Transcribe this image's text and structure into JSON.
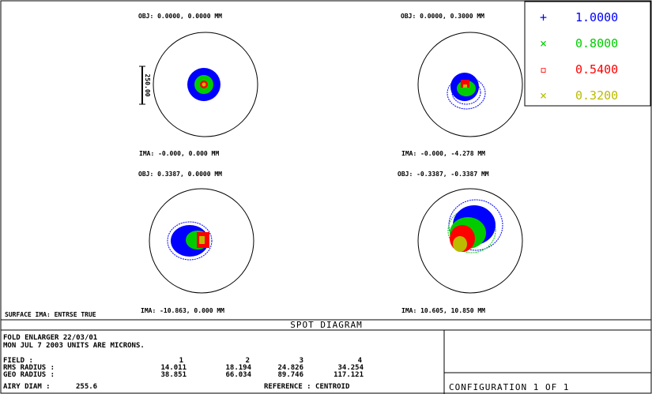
{
  "title": "SPOT DIAGRAM",
  "legend": [
    {
      "marker": "+",
      "value": "1.0000",
      "color": "#0000ff"
    },
    {
      "marker": "×",
      "value": "0.8000",
      "color": "#00cc00"
    },
    {
      "marker": "▫",
      "value": "0.5400",
      "color": "#ff0000"
    },
    {
      "marker": "×",
      "value": "0.3200",
      "color": "#bbbb00"
    }
  ],
  "scale_bar_label": "250.00",
  "surface_label": "SURFACE IMA: ENTRSE TRUE",
  "spots": [
    {
      "obj": "OBJ: 0.0000, 0.0000 MM",
      "ima": "IMA: -0.000, 0.000 MM"
    },
    {
      "obj": "OBJ: 0.0000, 0.3000 MM",
      "ima": "IMA: -0.000, -4.278 MM"
    },
    {
      "obj": "OBJ: 0.3387, 0.0000 MM",
      "ima": "IMA: -10.863, 0.000 MM"
    },
    {
      "obj": "OBJ: -0.3387, -0.3387 MM",
      "ima": "IMA: 10.605, 10.850 MM"
    }
  ],
  "info": {
    "line1": "FOLD ENLARGER 22/03/01",
    "line2": "MON JUL 7 2003  UNITS ARE MICRONS.",
    "field_label": "FIELD        :",
    "field_values": [
      "1",
      "2",
      "3",
      "4"
    ],
    "rms_label": "RMS RADIUS :",
    "rms_values": [
      "14.011",
      "18.194",
      "24.826",
      "34.254"
    ],
    "geo_label": "GEO RADIUS :",
    "geo_values": [
      "38.851",
      "66.034",
      "89.746",
      "117.121"
    ],
    "airy_label": "AIRY DIAM   :",
    "airy_value": "255.6",
    "reference": "REFERENCE   : CENTROID"
  },
  "configuration": "CONFIGURATION 1 OF 1"
}
